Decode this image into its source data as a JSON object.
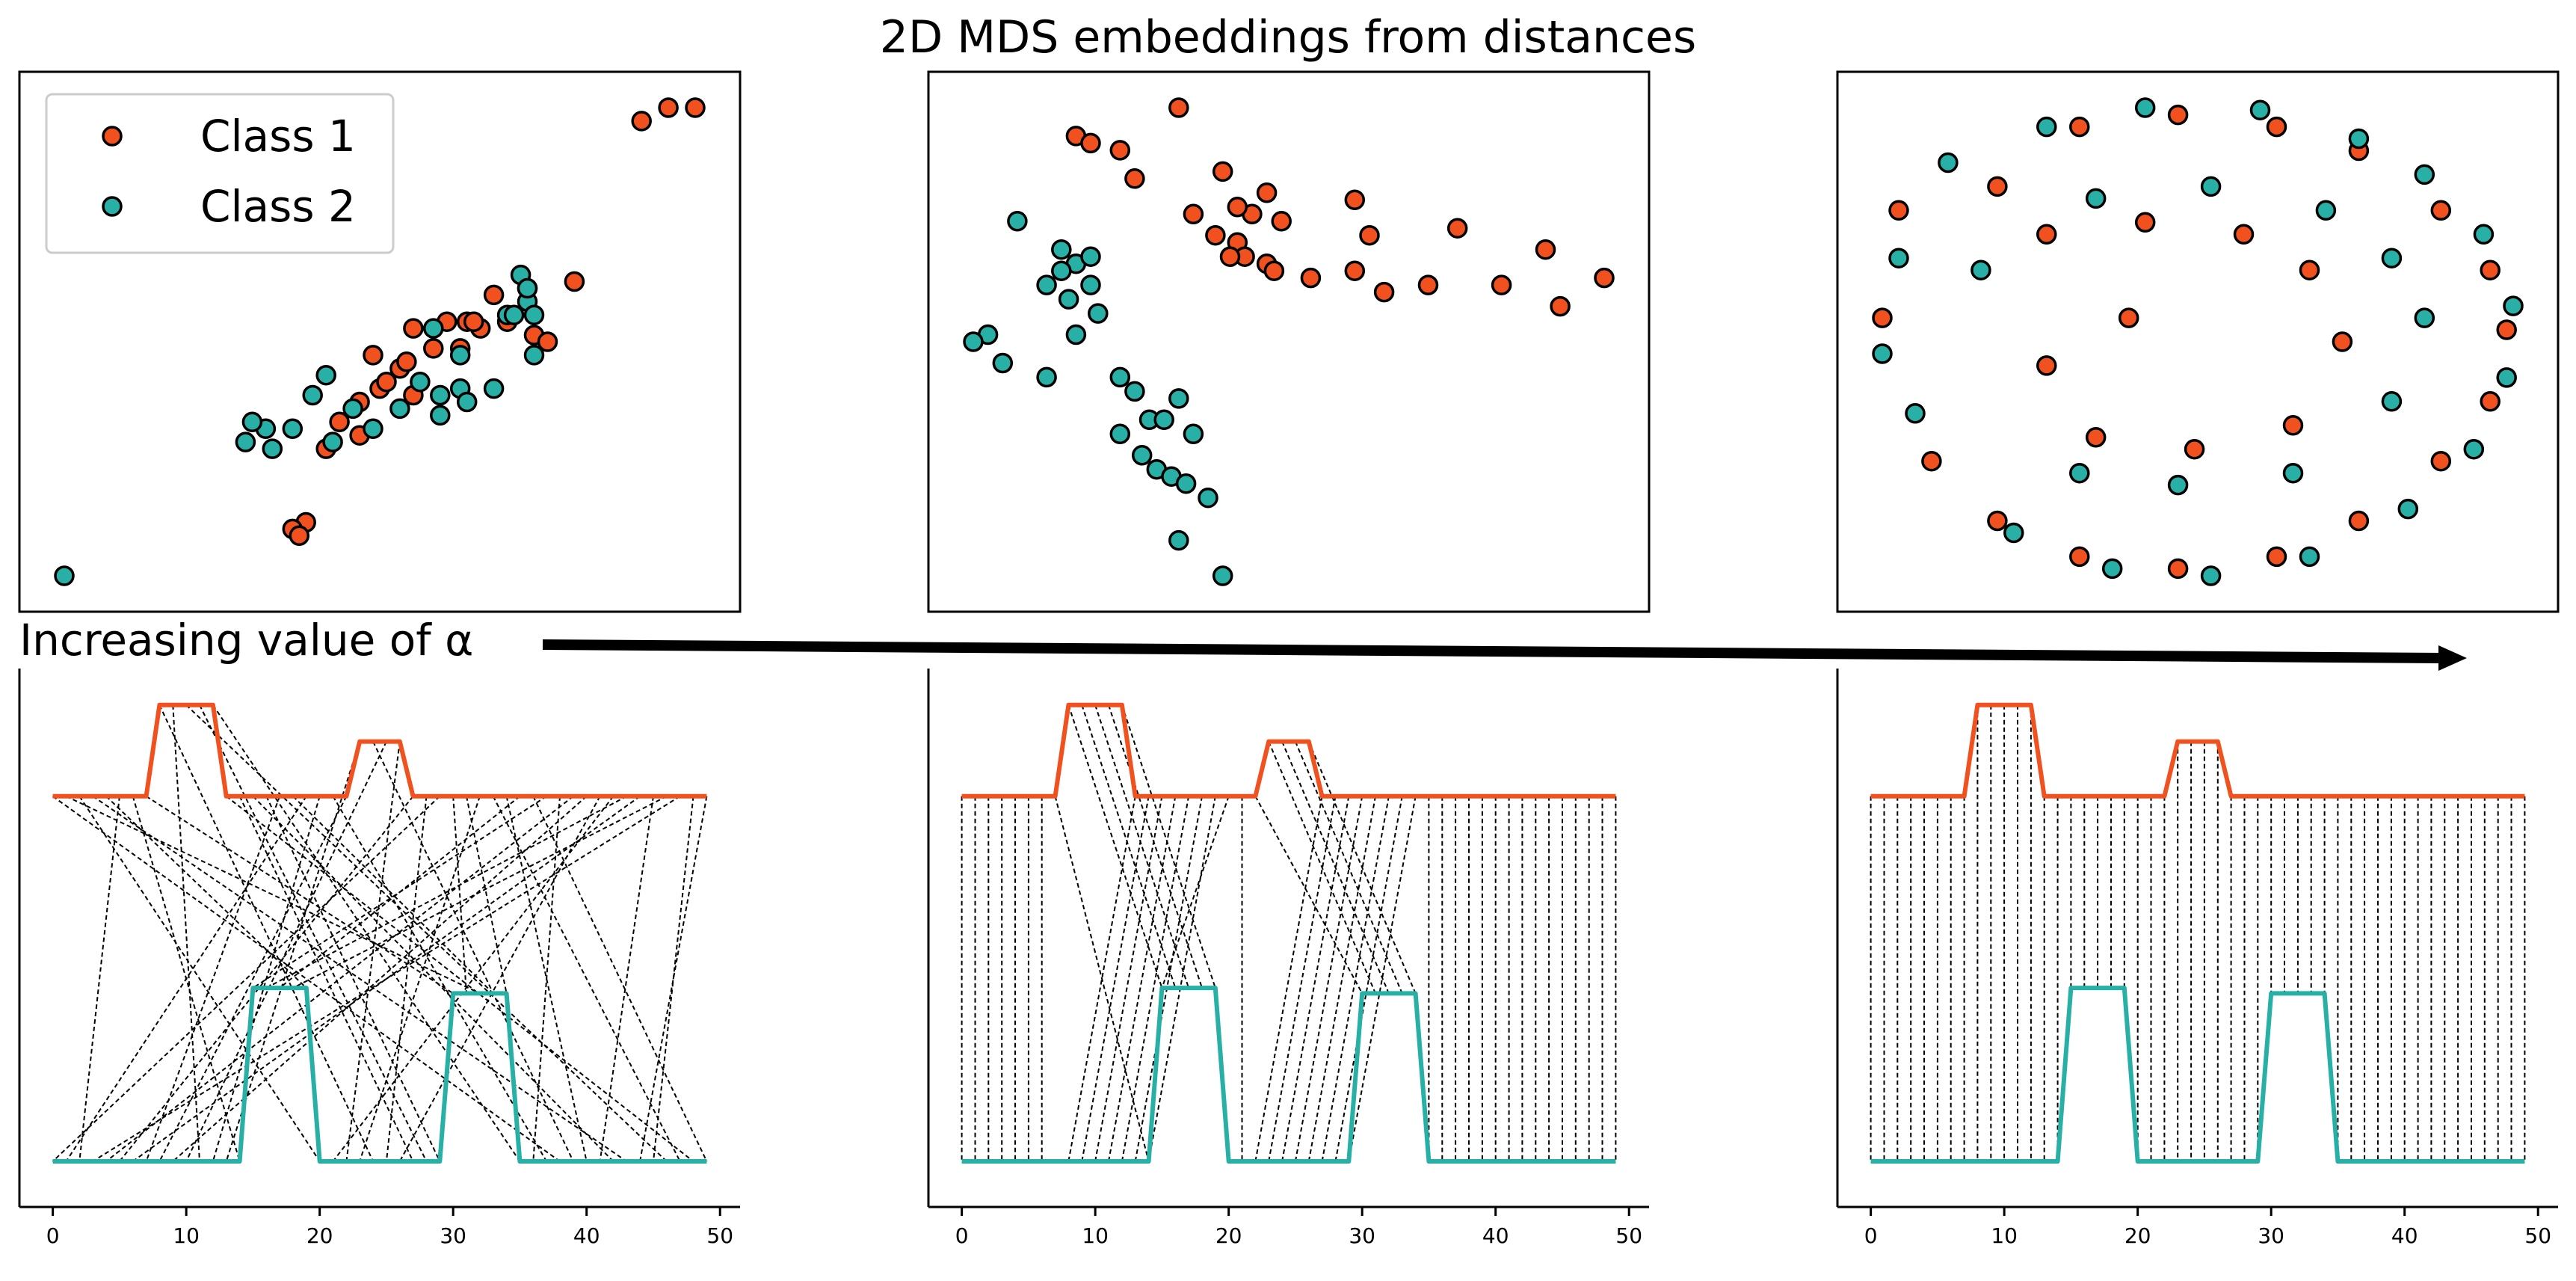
{
  "title": "2D MDS embeddings from distances",
  "annotation": "Increasing value of α",
  "colors": {
    "class1": "#f0511e",
    "class2": "#29b0a6",
    "edge": "#000000",
    "match": "#000000"
  },
  "legend": {
    "location": "upper-left",
    "entries": [
      "Class 1",
      "Class 2"
    ]
  },
  "chart_data": [
    {
      "type": "scatter",
      "panel": "top-left",
      "axes_visible": false,
      "series": [
        {
          "name": "Class 1",
          "points": [
            [
              2.5,
              2.6
            ],
            [
              2.3,
              2.5
            ],
            [
              2.7,
              2.6
            ],
            [
              1.0,
              1.0
            ],
            [
              0.3,
              0.75
            ],
            [
              1.8,
              1.3
            ],
            [
              0.2,
              0.4
            ],
            [
              0.95,
              0.8
            ],
            [
              0.5,
              0.65
            ],
            [
              0.85,
              1.0
            ],
            [
              1.1,
              0.95
            ],
            [
              0.35,
              0.5
            ],
            [
              1.5,
              0.9
            ],
            [
              0.05,
              0.25
            ],
            [
              0.2,
              0.15
            ],
            [
              1.6,
              0.85
            ],
            [
              0.6,
              0.45
            ],
            [
              1.2,
              1.2
            ],
            [
              0.4,
              0.55
            ],
            [
              -0.05,
              0.05
            ],
            [
              0.55,
              0.7
            ],
            [
              -0.2,
              -0.5
            ],
            [
              -0.3,
              -0.55
            ],
            [
              -0.25,
              -0.6
            ],
            [
              0.6,
              0.95
            ],
            [
              1.3,
              1.0
            ],
            [
              0.75,
              0.8
            ],
            [
              1.05,
              1.0
            ]
          ]
        },
        {
          "name": "Class 2",
          "points": [
            [
              -2.0,
              -0.9
            ],
            [
              1.3,
              1.05
            ],
            [
              1.35,
              1.05
            ],
            [
              1.45,
              1.25
            ],
            [
              1.4,
              1.35
            ],
            [
              1.45,
              1.15
            ],
            [
              1.45,
              1.25
            ],
            [
              0.95,
              0.75
            ],
            [
              0.65,
              0.55
            ],
            [
              1.2,
              0.5
            ],
            [
              1.5,
              0.75
            ],
            [
              0.3,
              0.2
            ],
            [
              -0.05,
              0.6
            ],
            [
              0.95,
              0.5
            ],
            [
              0.15,
              0.35
            ],
            [
              -0.3,
              0.2
            ],
            [
              -0.45,
              0.05
            ],
            [
              -0.5,
              0.2
            ],
            [
              -0.15,
              0.45
            ],
            [
              -0.65,
              0.1
            ],
            [
              -0.6,
              0.25
            ],
            [
              0.5,
              0.35
            ],
            [
              0.8,
              0.3
            ],
            [
              0.0,
              0.1
            ],
            [
              0.8,
              0.45
            ],
            [
              1.0,
              0.4
            ],
            [
              0.75,
              0.95
            ],
            [
              1.5,
              1.05
            ]
          ]
        }
      ]
    },
    {
      "type": "scatter",
      "panel": "top-middle",
      "axes_visible": false,
      "series": [
        {
          "name": "Class 1",
          "points": [
            [
              -1.6,
              2.0
            ],
            [
              -1.5,
              1.95
            ],
            [
              -1.3,
              1.9
            ],
            [
              -0.9,
              2.2
            ],
            [
              -1.2,
              1.7
            ],
            [
              -0.6,
              1.75
            ],
            [
              -0.3,
              1.6
            ],
            [
              -0.2,
              1.4
            ],
            [
              -0.4,
              1.45
            ],
            [
              0.3,
              1.55
            ],
            [
              0.4,
              1.3
            ],
            [
              -0.5,
              1.5
            ],
            [
              -0.5,
              1.25
            ],
            [
              -0.45,
              1.15
            ],
            [
              -0.8,
              1.45
            ],
            [
              -0.55,
              1.15
            ],
            [
              -0.65,
              1.3
            ],
            [
              0.0,
              1.0
            ],
            [
              0.5,
              0.9
            ],
            [
              1.0,
              1.35
            ],
            [
              1.6,
              1.2
            ],
            [
              2.0,
              1.0
            ],
            [
              1.7,
              0.8
            ],
            [
              1.3,
              0.95
            ],
            [
              0.8,
              0.95
            ],
            [
              0.3,
              1.05
            ],
            [
              -0.3,
              1.1
            ],
            [
              -0.25,
              1.05
            ]
          ]
        },
        {
          "name": "Class 2",
          "points": [
            [
              -2.0,
              1.4
            ],
            [
              -1.7,
              1.2
            ],
            [
              -1.6,
              1.1
            ],
            [
              -1.5,
              1.15
            ],
            [
              -1.7,
              1.05
            ],
            [
              -1.8,
              0.95
            ],
            [
              -1.5,
              0.95
            ],
            [
              -1.65,
              0.85
            ],
            [
              -2.2,
              0.6
            ],
            [
              -2.1,
              0.4
            ],
            [
              -1.8,
              0.3
            ],
            [
              -1.6,
              0.6
            ],
            [
              -1.45,
              0.75
            ],
            [
              -1.3,
              0.3
            ],
            [
              -1.2,
              0.2
            ],
            [
              -1.1,
              0.0
            ],
            [
              -1.3,
              -0.1
            ],
            [
              -1.15,
              -0.25
            ],
            [
              -1.05,
              -0.35
            ],
            [
              -0.95,
              -0.4
            ],
            [
              -0.85,
              -0.45
            ],
            [
              -0.7,
              -0.55
            ],
            [
              -0.9,
              -0.85
            ],
            [
              -2.3,
              0.55
            ],
            [
              -0.8,
              -0.1
            ],
            [
              -0.9,
              0.15
            ],
            [
              -1.0,
              0.0
            ],
            [
              -0.6,
              -1.1
            ]
          ]
        }
      ]
    },
    {
      "type": "scatter",
      "panel": "top-right",
      "axes_visible": false,
      "series": [
        {
          "name": "Class 1",
          "points": [
            [
              -0.95,
              0.1
            ],
            [
              -0.9,
              0.55
            ],
            [
              -0.6,
              0.65
            ],
            [
              -0.35,
              0.9
            ],
            [
              -0.05,
              0.95
            ],
            [
              0.25,
              0.9
            ],
            [
              0.5,
              0.8
            ],
            [
              0.75,
              0.55
            ],
            [
              0.9,
              0.3
            ],
            [
              0.95,
              0.05
            ],
            [
              0.9,
              -0.25
            ],
            [
              0.75,
              -0.5
            ],
            [
              0.5,
              -0.75
            ],
            [
              0.25,
              -0.9
            ],
            [
              -0.05,
              -0.95
            ],
            [
              -0.35,
              -0.9
            ],
            [
              -0.6,
              -0.75
            ],
            [
              -0.8,
              -0.5
            ],
            [
              -0.45,
              0.45
            ],
            [
              -0.15,
              0.5
            ],
            [
              0.15,
              0.45
            ],
            [
              0.35,
              0.3
            ],
            [
              0.45,
              0.0
            ],
            [
              0.3,
              -0.35
            ],
            [
              0.0,
              -0.45
            ],
            [
              -0.3,
              -0.4
            ],
            [
              -0.45,
              -0.1
            ],
            [
              -0.2,
              0.1
            ]
          ]
        },
        {
          "name": "Class 2",
          "points": [
            [
              -0.75,
              0.75
            ],
            [
              -0.45,
              0.9
            ],
            [
              -0.15,
              0.98
            ],
            [
              0.2,
              0.97
            ],
            [
              0.5,
              0.85
            ],
            [
              0.7,
              0.7
            ],
            [
              0.88,
              0.45
            ],
            [
              0.97,
              0.15
            ],
            [
              0.95,
              -0.15
            ],
            [
              0.85,
              -0.45
            ],
            [
              0.65,
              -0.7
            ],
            [
              0.35,
              -0.9
            ],
            [
              0.05,
              -0.98
            ],
            [
              -0.25,
              -0.95
            ],
            [
              -0.55,
              -0.8
            ],
            [
              -0.85,
              -0.3
            ],
            [
              -0.95,
              -0.05
            ],
            [
              -0.9,
              0.35
            ],
            [
              -0.65,
              0.3
            ],
            [
              -0.3,
              0.6
            ],
            [
              0.05,
              0.65
            ],
            [
              0.4,
              0.55
            ],
            [
              0.6,
              0.35
            ],
            [
              0.7,
              0.1
            ],
            [
              0.6,
              -0.25
            ],
            [
              0.3,
              -0.55
            ],
            [
              -0.05,
              -0.6
            ],
            [
              -0.35,
              -0.55
            ]
          ]
        }
      ]
    },
    {
      "type": "line",
      "panel": "bottom-left",
      "x_ticks": [
        0,
        10,
        20,
        30,
        40,
        50
      ],
      "xlim": [
        -2.5,
        51.5
      ],
      "series": [
        {
          "name": "Class 1",
          "color_key": "class1",
          "x": [
            0,
            7,
            8,
            12,
            13,
            22,
            23,
            26,
            27,
            49
          ],
          "y": [
            2,
            2,
            2.5,
            2.5,
            2,
            2,
            2.3,
            2.3,
            2,
            2
          ]
        },
        {
          "name": "Class 2",
          "color_key": "class2",
          "x": [
            0,
            14,
            15,
            19,
            20,
            29,
            30,
            34,
            35,
            49
          ],
          "y": [
            0,
            0,
            0.95,
            0.95,
            0,
            0,
            0.92,
            0.92,
            0,
            0
          ]
        }
      ],
      "matching": "scrambled"
    },
    {
      "type": "line",
      "panel": "bottom-middle",
      "x_ticks": [
        0,
        10,
        20,
        30,
        40,
        50
      ],
      "xlim": [
        -2.5,
        51.5
      ],
      "series": [
        {
          "name": "Class 1",
          "color_key": "class1",
          "x": [
            0,
            7,
            8,
            12,
            13,
            22,
            23,
            26,
            27,
            49
          ],
          "y": [
            2,
            2,
            2.5,
            2.5,
            2,
            2,
            2.3,
            2.3,
            2,
            2
          ]
        },
        {
          "name": "Class 2",
          "color_key": "class2",
          "x": [
            0,
            14,
            15,
            19,
            20,
            29,
            30,
            34,
            35,
            49
          ],
          "y": [
            0,
            0,
            0.95,
            0.95,
            0,
            0,
            0.92,
            0.92,
            0,
            0
          ]
        }
      ],
      "matching": "partially-shifted"
    },
    {
      "type": "line",
      "panel": "bottom-right",
      "x_ticks": [
        0,
        10,
        20,
        30,
        40,
        50
      ],
      "xlim": [
        -2.5,
        51.5
      ],
      "series": [
        {
          "name": "Class 1",
          "color_key": "class1",
          "x": [
            0,
            7,
            8,
            12,
            13,
            22,
            23,
            26,
            27,
            49
          ],
          "y": [
            2,
            2,
            2.5,
            2.5,
            2,
            2,
            2.3,
            2.3,
            2,
            2
          ]
        },
        {
          "name": "Class 2",
          "color_key": "class2",
          "x": [
            0,
            14,
            15,
            19,
            20,
            29,
            30,
            34,
            35,
            49
          ],
          "y": [
            0,
            0,
            0.95,
            0.95,
            0,
            0,
            0.92,
            0.92,
            0,
            0
          ]
        }
      ],
      "matching": "identity"
    }
  ]
}
